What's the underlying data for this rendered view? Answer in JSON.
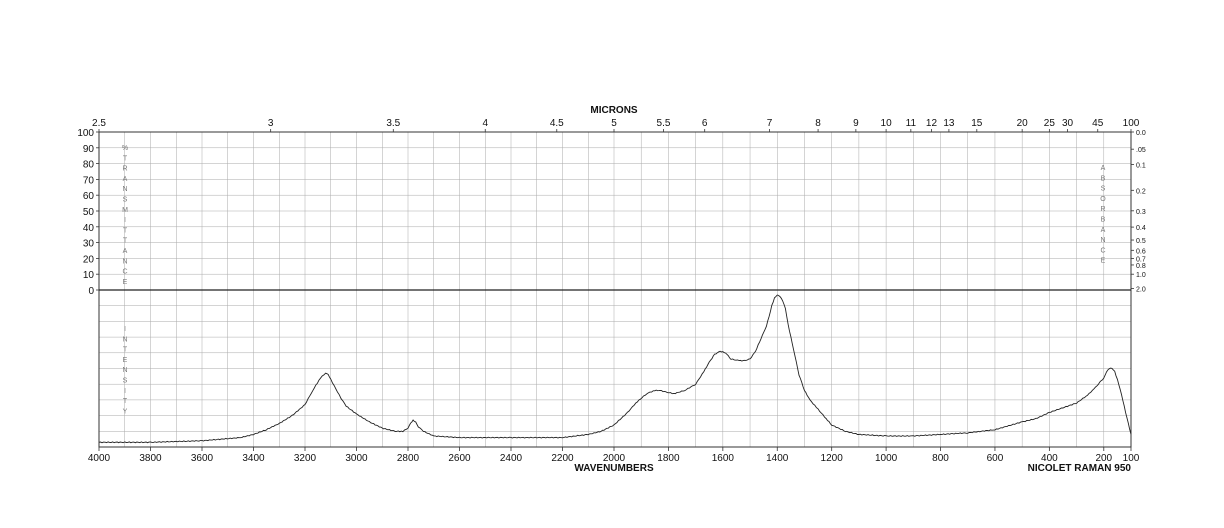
{
  "chart_data": {
    "type": "line",
    "title": "",
    "xlabel": "WAVENUMBERS",
    "top_axis_label": "MICRONS",
    "instrument": "NICOLET RAMAN 950",
    "left_upper_label": "% TRANSMITTANCE",
    "left_lower_label": "INTENSITY",
    "right_upper_label": "ABSORBANCE",
    "xlim": [
      4000,
      100
    ],
    "x_ticks": [
      4000,
      3800,
      3600,
      3400,
      3200,
      3000,
      2800,
      2600,
      2400,
      2200,
      2000,
      1800,
      1600,
      1400,
      1200,
      1000,
      800,
      600,
      400,
      200,
      100
    ],
    "micron_ticks": [
      "2.5",
      "3",
      "3.5",
      "4",
      "4.5",
      "5",
      "5.5",
      "6",
      "7",
      "8",
      "9",
      "10",
      "11",
      "12",
      "13",
      "15",
      "20",
      "25",
      "30",
      "45",
      "100"
    ],
    "transmittance_ticks": [
      "100",
      "90",
      "80",
      "70",
      "60",
      "50",
      "40",
      "30",
      "20",
      "10",
      "0"
    ],
    "absorbance_ticks": [
      "0.0",
      ".05",
      "0.1",
      "0.2",
      "0.3",
      "0.4",
      "0.5",
      "0.6",
      "0.7",
      "0.8",
      "1.0",
      "2.0"
    ],
    "grid": true,
    "series": [
      {
        "x": [
          4000,
          3800,
          3600,
          3450,
          3400,
          3350,
          3300,
          3250,
          3200,
          3170,
          3140,
          3120,
          3110,
          3100,
          3080,
          3060,
          3040,
          3000,
          2950,
          2900,
          2850,
          2820,
          2800,
          2790,
          2780,
          2770,
          2760,
          2740,
          2700,
          2600,
          2400,
          2200,
          2100,
          2050,
          2000,
          1950,
          1920,
          1880,
          1850,
          1830,
          1810,
          1780,
          1740,
          1700,
          1670,
          1650,
          1630,
          1610,
          1590,
          1570,
          1540,
          1520,
          1500,
          1480,
          1460,
          1440,
          1430,
          1420,
          1410,
          1400,
          1390,
          1380,
          1370,
          1360,
          1340,
          1320,
          1300,
          1280,
          1250,
          1220,
          1200,
          1150,
          1100,
          1000,
          900,
          800,
          700,
          600,
          500,
          450,
          400,
          350,
          300,
          260,
          230,
          210,
          200,
          190,
          180,
          170,
          160,
          150,
          140,
          130,
          120,
          110,
          100
        ],
        "y": [
          3,
          3,
          4,
          6,
          8,
          11,
          15,
          20,
          27,
          36,
          44,
          47,
          46,
          43,
          37,
          31,
          26,
          21,
          16,
          12,
          10,
          10,
          12,
          15,
          17,
          16,
          13,
          10,
          7,
          6,
          6,
          6,
          8,
          10,
          14,
          22,
          28,
          34,
          36,
          36,
          35,
          34,
          36,
          40,
          48,
          54,
          59,
          61,
          60,
          56,
          55,
          55,
          56,
          61,
          69,
          77,
          83,
          90,
          95,
          97,
          96,
          93,
          88,
          78,
          62,
          46,
          36,
          30,
          24,
          18,
          14,
          10,
          8,
          7,
          7,
          8,
          9,
          11,
          16,
          18,
          22,
          25,
          28,
          33,
          38,
          42,
          44,
          48,
          50,
          50,
          48,
          43,
          37,
          30,
          22,
          15,
          8
        ]
      }
    ]
  }
}
